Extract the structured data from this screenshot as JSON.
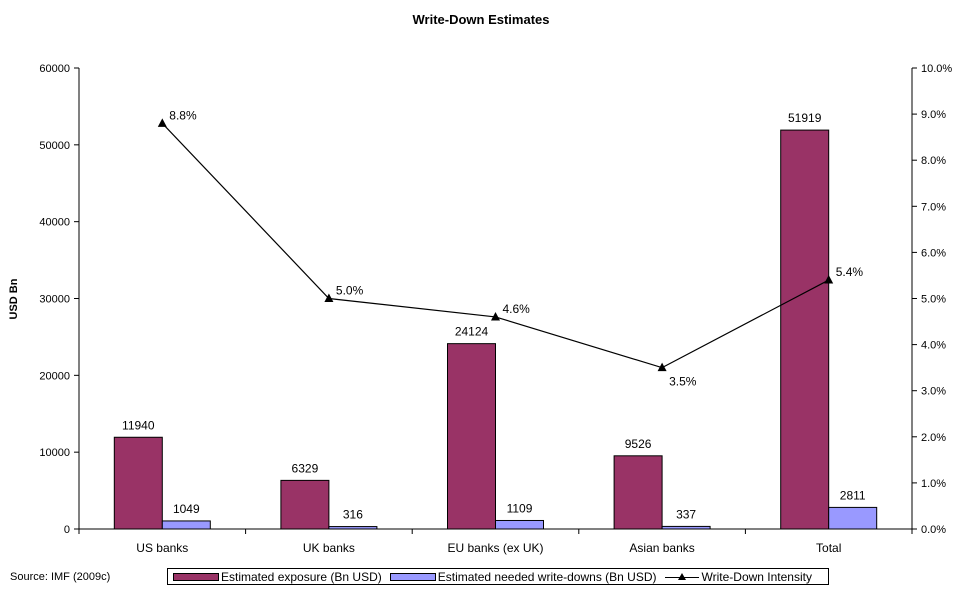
{
  "chart_data": {
    "type": "bar",
    "title": "Write-Down Estimates",
    "ylabel": "USD Bn",
    "categories": [
      "US banks",
      "UK banks",
      "EU banks (ex UK)",
      "Asian banks",
      "Total"
    ],
    "series": [
      {
        "name": "Estimated exposure (Bn USD)",
        "type": "bar",
        "axis": "left",
        "color": "#993366",
        "values": [
          11940,
          6329,
          24124,
          9526,
          51919
        ],
        "labels": [
          "11940",
          "6329",
          "24124",
          "9526",
          "51919"
        ]
      },
      {
        "name": "Estimated needed write-downs (Bn USD)",
        "type": "bar",
        "axis": "left",
        "color": "#9999ff",
        "values": [
          1049,
          316,
          1109,
          337,
          2811
        ],
        "labels": [
          "1049",
          "316",
          "1109",
          "337",
          "2811"
        ]
      },
      {
        "name": "Write-Down Intensity",
        "type": "line",
        "axis": "right",
        "color": "#000000",
        "marker": "triangle",
        "values": [
          8.8,
          5.0,
          4.6,
          3.5,
          5.4
        ],
        "labels": [
          "8.8%",
          "5.0%",
          "4.6%",
          "3.5%",
          "5.4%"
        ]
      }
    ],
    "ylim": [
      0,
      60000
    ],
    "y_ticks": [
      "0",
      "10000",
      "20000",
      "30000",
      "40000",
      "50000",
      "60000"
    ],
    "y2lim": [
      0,
      10
    ],
    "y2_ticks": [
      "0.0%",
      "1.0%",
      "2.0%",
      "3.0%",
      "4.0%",
      "5.0%",
      "6.0%",
      "7.0%",
      "8.0%",
      "9.0%",
      "10.0%"
    ],
    "grid": false,
    "legend_position": "bottom"
  },
  "source": "Source: IMF (2009c)"
}
